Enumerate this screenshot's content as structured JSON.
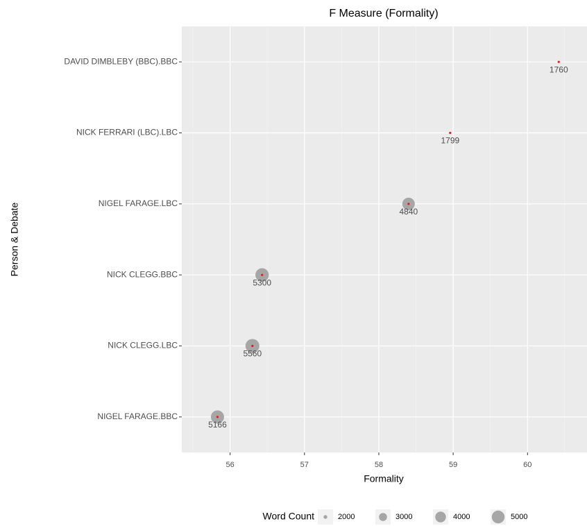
{
  "chart_data": {
    "type": "scatter",
    "title": "F Measure (Formality)",
    "x_label": "Formality",
    "y_label": "Person & Debate",
    "categories": [
      "DAVID DIMBLEBY (BBC).BBC",
      "NICK FERRARI (LBC).LBC",
      "NIGEL FARAGE.LBC",
      "NICK CLEGG.BBC",
      "NICK CLEGG.LBC",
      "NIGEL FARAGE.BBC"
    ],
    "x": [
      60.42,
      58.96,
      58.4,
      56.43,
      56.3,
      55.83
    ],
    "sizes": [
      1760,
      1799,
      4840,
      5300,
      5560,
      5166
    ],
    "xlim": [
      55.35,
      60.8
    ],
    "xticks": [
      56,
      57,
      58,
      59,
      60
    ],
    "x_minor_ticks": [
      55.5,
      56.5,
      57.5,
      58.5,
      59.5,
      60.5
    ],
    "grid": true,
    "point_color": "#a6a6a6",
    "center_color": "#e8191b",
    "legend": {
      "title": "Word Count",
      "position": "bottom",
      "values": [
        2000,
        3000,
        4000,
        5000
      ]
    }
  }
}
